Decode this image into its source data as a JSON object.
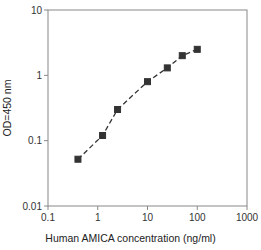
{
  "chart_data": {
    "type": "line",
    "x": [
      0.4,
      1.25,
      2.5,
      10,
      25,
      50,
      100
    ],
    "values": [
      0.052,
      0.12,
      0.3,
      0.8,
      1.3,
      2.0,
      2.5
    ],
    "xlabel": "Human AMICA concentration (ng/ml)",
    "ylabel": "OD=450 nm",
    "xlim": [
      0.1,
      1000
    ],
    "ylim": [
      0.01,
      10
    ],
    "xticks": [
      0.1,
      1,
      10,
      100,
      1000
    ],
    "yticks": [
      0.01,
      0.1,
      1,
      10
    ],
    "log": true,
    "grid": false,
    "color": "#333333",
    "marker": "square",
    "line_style": "dashed"
  }
}
